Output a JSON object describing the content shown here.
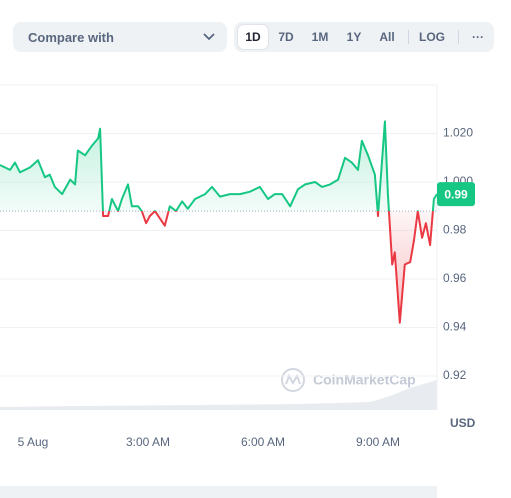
{
  "controls": {
    "compare": "Compare with",
    "ranges": [
      "1D",
      "7D",
      "1M",
      "1Y",
      "All"
    ],
    "log": "LOG",
    "more": "···"
  },
  "chart_data": {
    "type": "line",
    "x": [
      -0.86,
      -0.6,
      -0.47,
      -0.34,
      -0.08,
      0.13,
      0.31,
      0.44,
      0.57,
      0.76,
      0.97,
      1.1,
      1.17,
      1.36,
      1.54,
      1.7,
      1.75,
      1.83,
      1.96,
      2.06,
      2.22,
      2.32,
      2.48,
      2.58,
      2.74,
      2.84,
      2.95,
      3.05,
      3.18,
      3.31,
      3.44,
      3.57,
      3.73,
      3.89,
      4.04,
      4.23,
      4.49,
      4.67,
      4.88,
      5.14,
      5.4,
      5.66,
      5.92,
      6.13,
      6.31,
      6.5,
      6.71,
      6.91,
      7.1,
      7.36,
      7.54,
      7.75,
      7.96,
      8.14,
      8.32,
      8.48,
      8.58,
      8.74,
      8.92,
      9.0,
      9.18,
      9.26,
      9.37,
      9.44,
      9.57,
      9.7,
      9.84,
      9.94,
      10.04,
      10.15,
      10.25,
      10.36,
      10.46,
      10.54
    ],
    "values": [
      1.007,
      1.005,
      1.008,
      1.004,
      1.006,
      1.009,
      1.002,
      1.003,
      0.998,
      0.995,
      1.001,
      0.999,
      1.013,
      1.011,
      1.015,
      1.018,
      1.022,
      0.986,
      0.986,
      0.993,
      0.988,
      0.993,
      0.999,
      0.99,
      0.99,
      0.988,
      0.983,
      0.986,
      0.988,
      0.985,
      0.982,
      0.99,
      0.988,
      0.992,
      0.989,
      0.993,
      0.995,
      0.998,
      0.994,
      0.995,
      0.995,
      0.996,
      0.998,
      0.993,
      0.995,
      0.995,
      0.99,
      0.997,
      0.999,
      1.0,
      0.998,
      0.999,
      1.001,
      1.01,
      1.008,
      1.005,
      1.017,
      1.011,
      1.003,
      0.986,
      1.025,
      0.995,
      0.966,
      0.971,
      0.942,
      0.966,
      0.967,
      0.976,
      0.988,
      0.977,
      0.983,
      0.974,
      0.993,
      0.995
    ],
    "baseline": 0.988,
    "color_up": "#16c784",
    "color_down": "#ea3943",
    "xlim": [
      -0.86,
      10.54
    ],
    "xticks": [
      {
        "value": 0,
        "label": "5 Aug"
      },
      {
        "value": 3,
        "label": "3:00 AM"
      },
      {
        "value": 6,
        "label": "6:00 AM"
      },
      {
        "value": 9,
        "label": "9:00 AM"
      }
    ],
    "ylim": [
      0.906,
      1.04
    ],
    "yticks": [
      0.92,
      0.94,
      0.96,
      0.98,
      {
        "value": 1.0,
        "label": "1.000"
      },
      {
        "value": 1.02,
        "label": "1.020"
      }
    ],
    "grid": true,
    "price_tag": "0.99",
    "currency_label": "USD",
    "watermark": "CoinMarketCap"
  }
}
